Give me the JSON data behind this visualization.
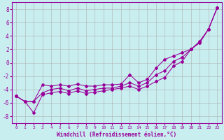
{
  "title": "",
  "xlabel": "Windchill (Refroidissement éolien,°C)",
  "ylabel": "",
  "bg_color": "#c8eef0",
  "line_color": "#990099",
  "grid_color": "#b0b0b0",
  "xlim": [
    -0.5,
    23.5
  ],
  "ylim": [
    -9,
    9
  ],
  "xticks": [
    0,
    1,
    2,
    3,
    4,
    5,
    6,
    7,
    8,
    9,
    10,
    11,
    12,
    13,
    14,
    15,
    16,
    17,
    18,
    19,
    20,
    21,
    22,
    23
  ],
  "yticks": [
    -8,
    -6,
    -4,
    -2,
    0,
    2,
    4,
    6,
    8
  ],
  "line1_y": [
    -5.0,
    -5.8,
    -5.8,
    -3.3,
    -3.5,
    -3.3,
    -3.5,
    -3.2,
    -3.5,
    -3.5,
    -3.3,
    -3.3,
    -3.2,
    -1.8,
    -3.0,
    -2.5,
    -0.8,
    0.5,
    1.0,
    1.5,
    2.0,
    3.2,
    5.0,
    8.2
  ],
  "line2_y": [
    -5.0,
    -5.8,
    -5.8,
    -4.5,
    -4.0,
    -3.8,
    -4.2,
    -3.8,
    -4.2,
    -4.0,
    -3.8,
    -3.8,
    -3.5,
    -3.0,
    -3.5,
    -3.0,
    -1.8,
    -1.2,
    0.2,
    0.8,
    2.0,
    3.0,
    5.0,
    8.2
  ],
  "line3_y": [
    -5.0,
    -5.8,
    -7.5,
    -4.8,
    -4.5,
    -4.3,
    -4.6,
    -4.2,
    -4.6,
    -4.4,
    -4.2,
    -4.0,
    -3.8,
    -3.5,
    -4.0,
    -3.5,
    -2.8,
    -2.2,
    -0.5,
    0.2,
    2.0,
    3.0,
    5.0,
    8.2
  ],
  "xlabel_fontsize": 5.5,
  "tick_fontsize_x": 4.5,
  "tick_fontsize_y": 5.5
}
